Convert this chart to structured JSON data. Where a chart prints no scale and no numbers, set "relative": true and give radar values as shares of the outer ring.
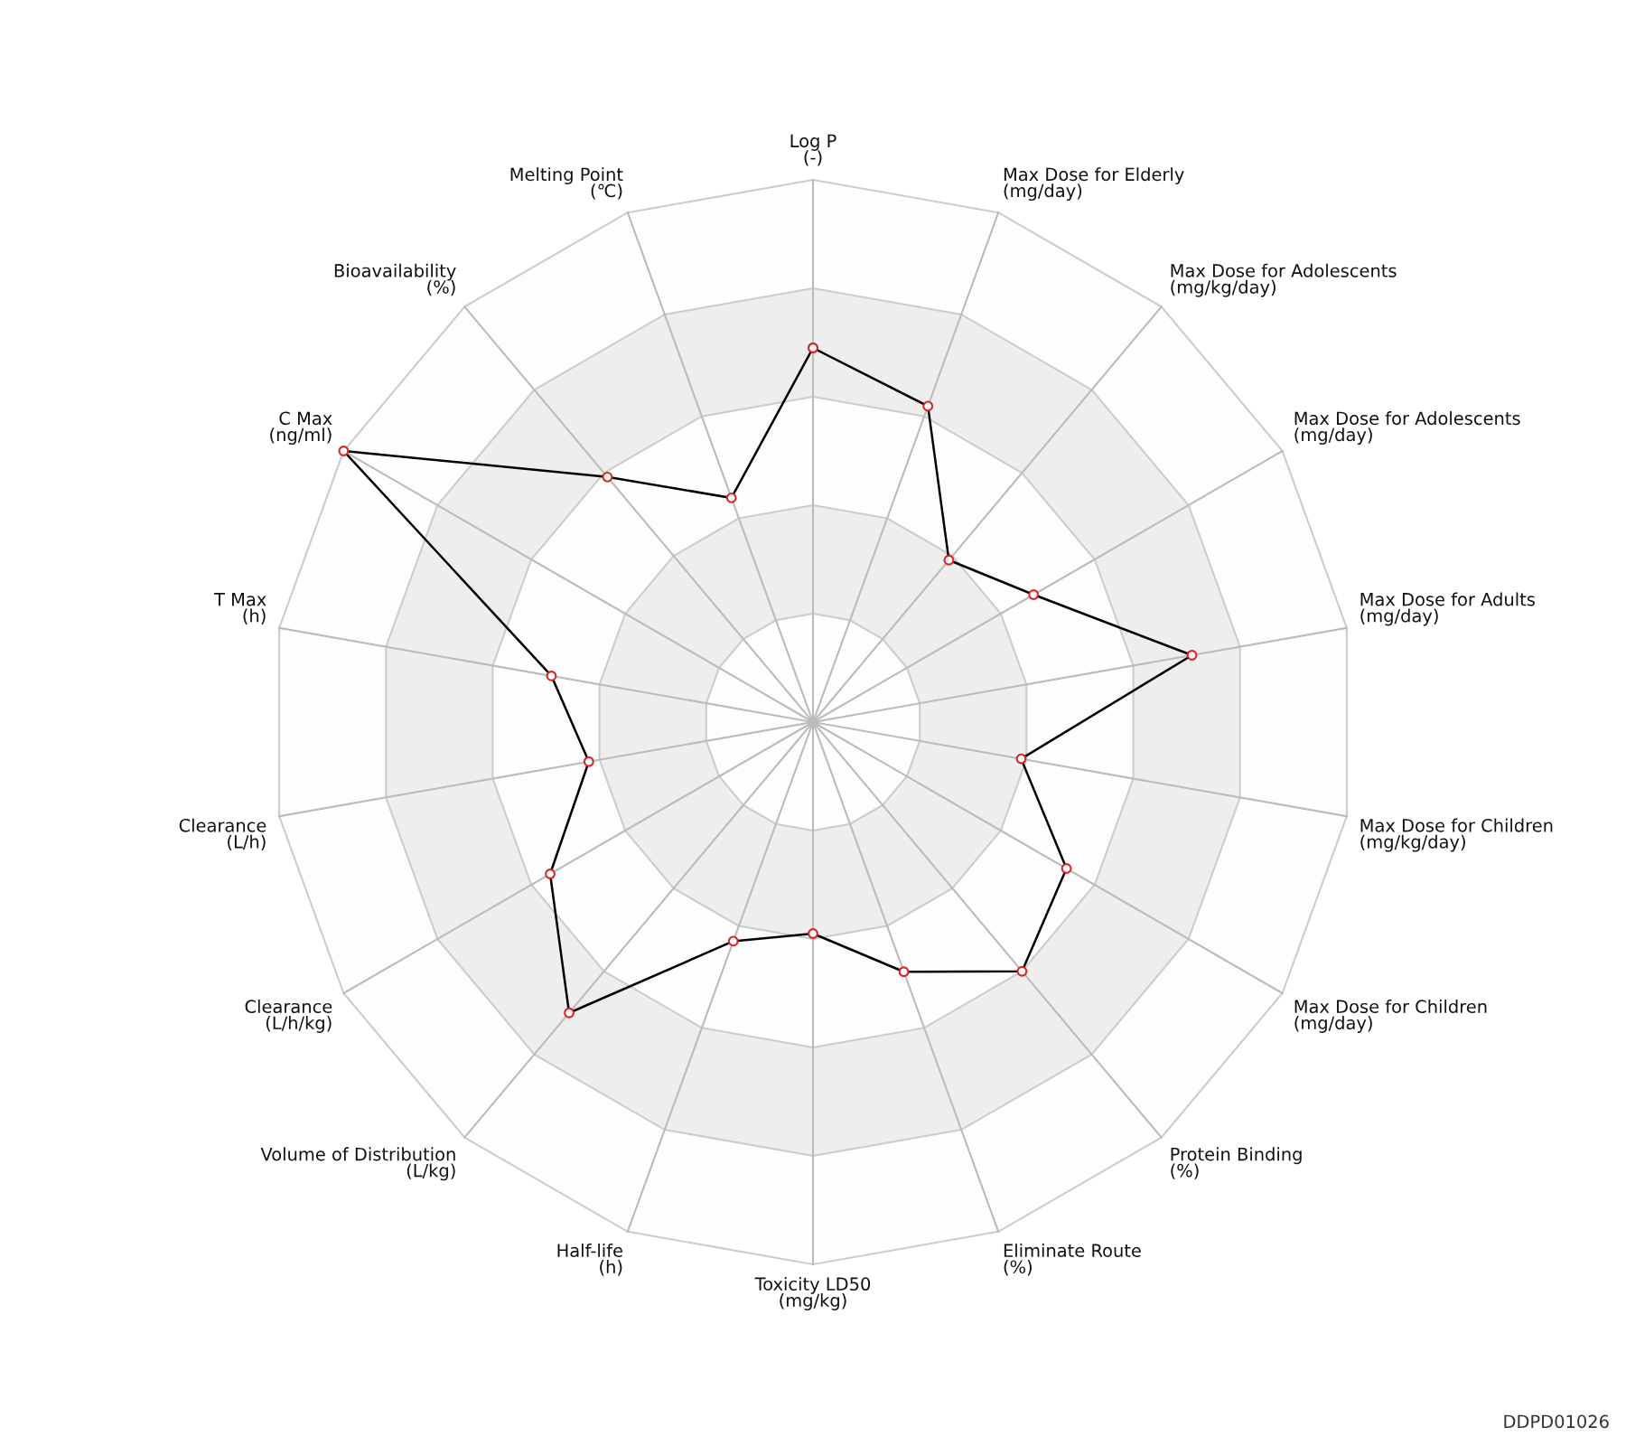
{
  "chart_data": {
    "type": "radar",
    "relative": true,
    "grid": true,
    "marker": "circle",
    "line_style": "solid",
    "categories": [
      "Log P\n(-)",
      "Max Dose for Elderly\n(mg/day)",
      "Max Dose for Adolescents\n(mg/kg/day)",
      "Max Dose for Adolescents\n(mg/day)",
      "Max Dose for Adults\n(mg/day)",
      "Max Dose for Children\n(mg/kg/day)",
      "Max Dose for Children\n(mg/day)",
      "Protein Binding\n(%)",
      "Eliminate Route\n(%)",
      "Toxicity LD50\n(mg/kg)",
      "Half-life\n(h)",
      "Volume of Distribution\n(L/kg)",
      "Clearance\n(L/h/kg)",
      "Clearance\n(L/h)",
      "T Max\n(h)",
      "C Max\n(ng/ml)",
      "Bioavailability\n(%)",
      "Melting Point\n(℃)"
    ],
    "series": [
      {
        "color": "#000000",
        "values": [
          0.69,
          0.62,
          0.39,
          0.47,
          0.71,
          0.39,
          0.54,
          0.6,
          0.49,
          0.39,
          0.43,
          0.7,
          0.56,
          0.42,
          0.49,
          1.0,
          0.59,
          0.44
        ]
      }
    ],
    "annotations": [
      "DDPD01026"
    ]
  }
}
